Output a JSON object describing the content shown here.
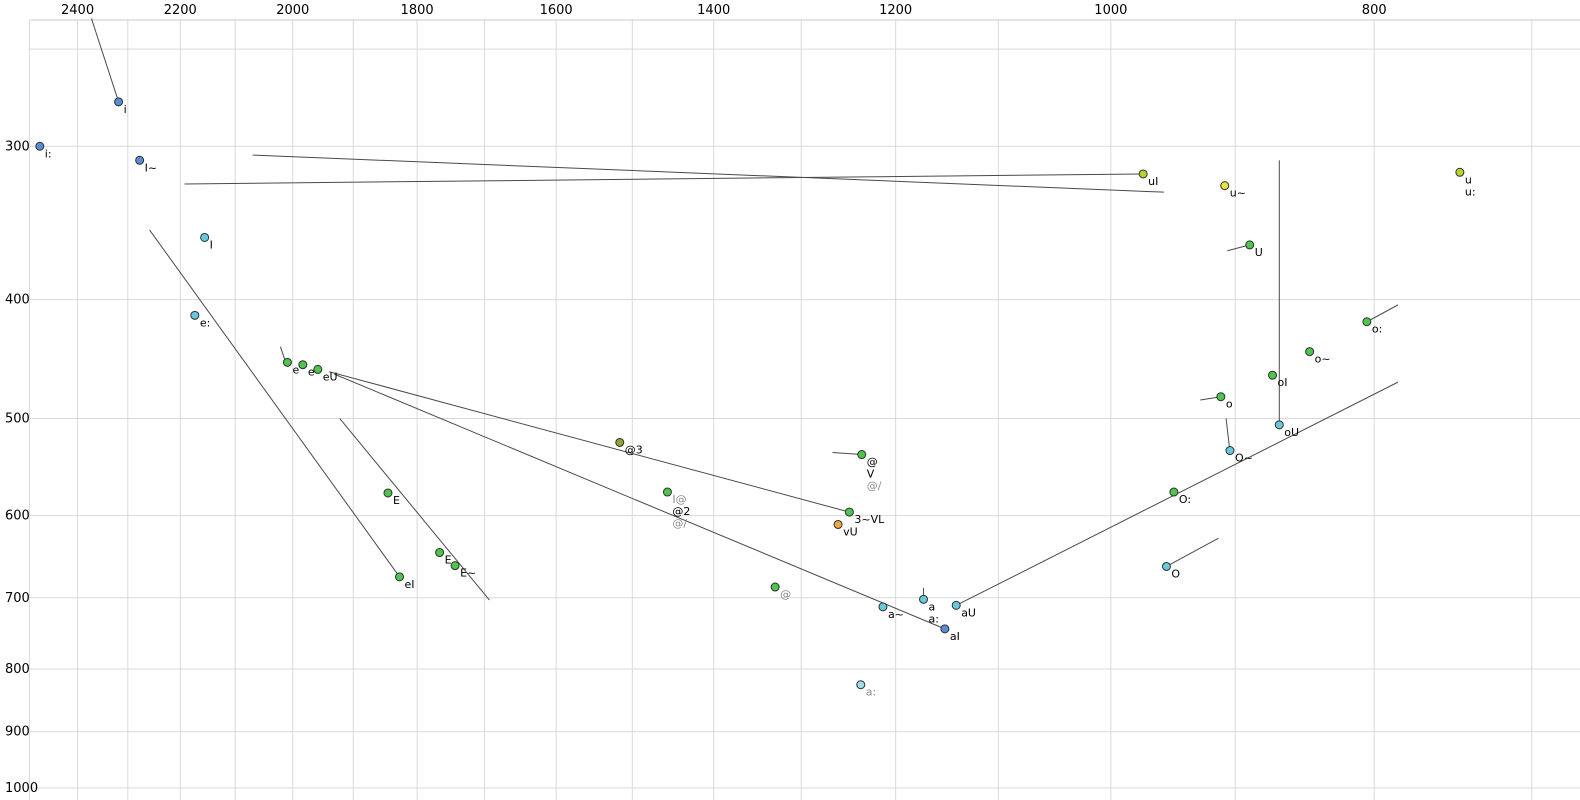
{
  "chart_data": {
    "type": "scatter",
    "title": "",
    "xlabel": "",
    "ylabel": "",
    "x_axis": {
      "scale": "log",
      "reversed": true,
      "position": "top",
      "range": [
        2563,
        672
      ],
      "tick_labels": [
        2400,
        2200,
        2000,
        1800,
        1600,
        1400,
        1200,
        1000,
        800
      ],
      "gridlines": [
        2500,
        2400,
        2300,
        2200,
        2100,
        2000,
        1900,
        1800,
        1700,
        1600,
        1500,
        1400,
        1300,
        1200,
        1100,
        1000,
        900,
        800,
        700
      ]
    },
    "y_axis": {
      "scale": "log",
      "reversed": true,
      "position": "left",
      "range": [
        228,
        1023
      ],
      "tick_labels": [
        300,
        400,
        500,
        600,
        700,
        800,
        900,
        1000
      ],
      "gridlines": [
        250,
        300,
        400,
        500,
        600,
        700,
        800,
        900,
        1000
      ]
    },
    "points": [
      {
        "labels": [
          {
            "t": "i:",
            "c": "black"
          }
        ],
        "f2": 2478,
        "f1": 300,
        "color": "blue"
      },
      {
        "labels": [
          {
            "t": "i",
            "c": "black"
          }
        ],
        "f2": 2318,
        "f1": 276,
        "color": "blue"
      },
      {
        "labels": [
          {
            "t": "I~",
            "c": "black"
          }
        ],
        "f2": 2277,
        "f1": 308,
        "color": "blue"
      },
      {
        "labels": [
          {
            "t": "I",
            "c": "black"
          }
        ],
        "f2": 2155,
        "f1": 356,
        "color": "cyan"
      },
      {
        "labels": [
          {
            "t": "e:",
            "c": "black"
          }
        ],
        "f2": 2173,
        "f1": 412,
        "color": "cyan"
      },
      {
        "labels": [
          {
            "t": "e",
            "c": "black"
          }
        ],
        "f2": 2009,
        "f1": 450,
        "color": "green"
      },
      {
        "labels": [
          {
            "t": "e",
            "c": "black"
          }
        ],
        "f2": 1983,
        "f1": 452,
        "color": "green"
      },
      {
        "labels": [
          {
            "t": "eU",
            "c": "black"
          }
        ],
        "f2": 1958,
        "f1": 456,
        "color": "green"
      },
      {
        "labels": [
          {
            "t": "E",
            "c": "black"
          }
        ],
        "f2": 1845,
        "f1": 575,
        "color": "green"
      },
      {
        "labels": [
          {
            "t": "E",
            "c": "black"
          }
        ],
        "f2": 1766,
        "f1": 643,
        "color": "green"
      },
      {
        "labels": [
          {
            "t": "E~",
            "c": "black"
          }
        ],
        "f2": 1743,
        "f1": 659,
        "color": "green"
      },
      {
        "labels": [
          {
            "t": "eI",
            "c": "black"
          }
        ],
        "f2": 1827,
        "f1": 673,
        "color": "green"
      },
      {
        "labels": [
          {
            "t": "@3",
            "c": "black"
          }
        ],
        "f2": 1516,
        "f1": 523,
        "color": "olive"
      },
      {
        "labels": [
          {
            "t": "I@",
            "c": "gray"
          },
          {
            "t": "@2",
            "c": "black"
          },
          {
            "t": "@/",
            "c": "gray"
          }
        ],
        "f2": 1456,
        "f1": 574,
        "color": "green"
      },
      {
        "labels": [
          {
            "t": "@",
            "c": "black"
          },
          {
            "t": "V",
            "c": "black"
          },
          {
            "t": "@/",
            "c": "gray"
          }
        ],
        "f2": 1235,
        "f1": 535,
        "color": "green"
      },
      {
        "labels": [
          {
            "t": "3~VL",
            "c": "black"
          }
        ],
        "f2": 1248,
        "f1": 596,
        "color": "green"
      },
      {
        "labels": [
          {
            "t": "vU",
            "c": "black"
          }
        ],
        "f2": 1260,
        "f1": 610,
        "color": "orange"
      },
      {
        "labels": [
          {
            "t": "@",
            "c": "gray"
          }
        ],
        "f2": 1329,
        "f1": 686,
        "color": "green"
      },
      {
        "labels": [
          {
            "t": "a~",
            "c": "black"
          }
        ],
        "f2": 1213,
        "f1": 712,
        "color": "cyan"
      },
      {
        "labels": [
          {
            "t": "a",
            "c": "black"
          },
          {
            "t": "a:",
            "c": "black"
          }
        ],
        "f2": 1172,
        "f1": 702,
        "color": "cyan"
      },
      {
        "labels": [
          {
            "t": "aU",
            "c": "black"
          }
        ],
        "f2": 1140,
        "f1": 710,
        "color": "cyan"
      },
      {
        "labels": [
          {
            "t": "aI",
            "c": "black"
          }
        ],
        "f2": 1151,
        "f1": 742,
        "color": "blue"
      },
      {
        "labels": [
          {
            "t": "a:",
            "c": "gray"
          }
        ],
        "f2": 1236,
        "f1": 824,
        "color": "palecyan"
      },
      {
        "labels": [
          {
            "t": "uI",
            "c": "black"
          }
        ],
        "f2": 973,
        "f1": 316,
        "color": "yellowgreen"
      },
      {
        "labels": [
          {
            "t": "u~",
            "c": "black"
          }
        ],
        "f2": 908,
        "f1": 323,
        "color": "yellow"
      },
      {
        "labels": [
          {
            "t": "U",
            "c": "black"
          }
        ],
        "f2": 889,
        "f1": 361,
        "color": "green"
      },
      {
        "labels": [
          {
            "t": "u",
            "c": "black"
          },
          {
            "t": "u:",
            "c": "black"
          }
        ],
        "f2": 744,
        "f1": 315,
        "color": "yellowgreen"
      },
      {
        "labels": [
          {
            "t": "o:",
            "c": "black"
          }
        ],
        "f2": 805,
        "f1": 417,
        "color": "green"
      },
      {
        "labels": [
          {
            "t": "o~",
            "c": "black"
          }
        ],
        "f2": 845,
        "f1": 441,
        "color": "green"
      },
      {
        "labels": [
          {
            "t": "oI",
            "c": "black"
          }
        ],
        "f2": 872,
        "f1": 461,
        "color": "green"
      },
      {
        "labels": [
          {
            "t": "o",
            "c": "black"
          }
        ],
        "f2": 911,
        "f1": 480,
        "color": "green"
      },
      {
        "labels": [
          {
            "t": "oU",
            "c": "black"
          }
        ],
        "f2": 867,
        "f1": 506,
        "color": "cyan"
      },
      {
        "labels": [
          {
            "t": "O~",
            "c": "black"
          }
        ],
        "f2": 904,
        "f1": 531,
        "color": "cyan"
      },
      {
        "labels": [
          {
            "t": "O:",
            "c": "black"
          }
        ],
        "f2": 948,
        "f1": 574,
        "color": "green"
      },
      {
        "labels": [
          {
            "t": "O",
            "c": "black"
          }
        ],
        "f2": 954,
        "f1": 660,
        "color": "cyan"
      }
    ],
    "trajectories": [
      [
        [
          2372,
          236
        ],
        [
          2318,
          276
        ]
      ],
      [
        [
          2069,
          305
        ],
        [
          956,
          327
        ]
      ],
      [
        [
          2192,
          322
        ],
        [
          973,
          316
        ]
      ],
      [
        [
          2258,
          351
        ],
        [
          1827,
          673
        ]
      ],
      [
        [
          1922,
          500
        ],
        [
          1693,
          703
        ]
      ],
      [
        [
          1939,
          458
        ],
        [
          1248,
          596
        ]
      ],
      [
        [
          1931,
          460
        ],
        [
          1151,
          742
        ]
      ],
      [
        [
          1140,
          710
        ],
        [
          784,
          467
        ]
      ],
      [
        [
          867,
          308
        ],
        [
          867,
          506
        ]
      ],
      [
        [
          1172,
          687
        ],
        [
          1172,
          706
        ]
      ],
      [
        [
          2021,
          437
        ],
        [
          2012,
          450
        ]
      ],
      [
        [
          906,
          365
        ],
        [
          889,
          361
        ]
      ],
      [
        [
          805,
          417
        ],
        [
          784,
          404
        ]
      ],
      [
        [
          927,
          483
        ],
        [
          911,
          480
        ]
      ],
      [
        [
          907,
          500
        ],
        [
          904,
          532
        ]
      ],
      [
        [
          954,
          660
        ],
        [
          913,
          626
        ]
      ],
      [
        [
          1266,
          533
        ],
        [
          1235,
          535
        ]
      ]
    ]
  },
  "colors": {
    "blue": "#5b8bd0",
    "cyan": "#66c9dc",
    "palecyan": "#a3dcec",
    "green": "#4fc44f",
    "olive": "#97a12f",
    "yellowgreen": "#b6d42e",
    "yellow": "#e8e23c",
    "orange": "#f2a93b",
    "label_black": "#000000",
    "label_gray": "#8c8c8c",
    "grid": "#d9d9d9",
    "frame": "#c8c8c8",
    "line": "#4a4a4a",
    "point_stroke": "#2f2f2f",
    "background": "#ffffff"
  }
}
